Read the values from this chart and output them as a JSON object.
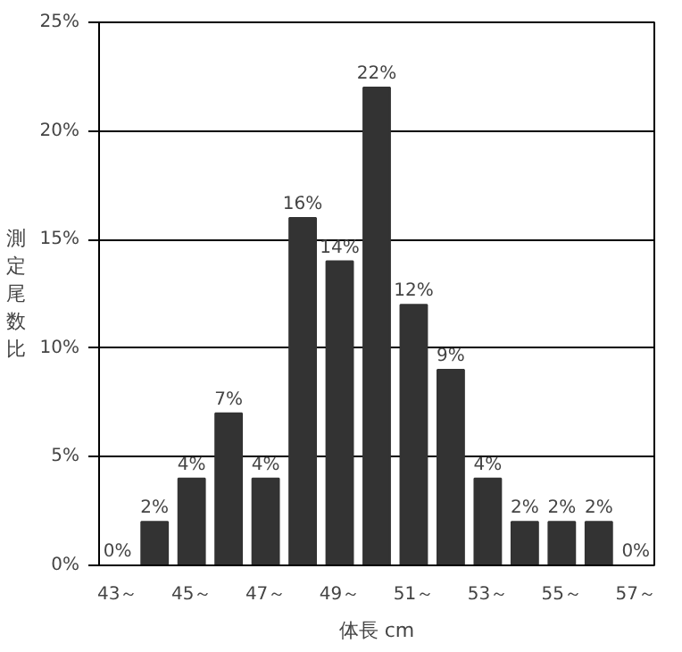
{
  "chart_data": {
    "type": "bar",
    "xlabel": "体長 cm",
    "ylabel": "測定尾数比",
    "categories": [
      "43～",
      null,
      "45～",
      null,
      "47～",
      null,
      "49～",
      null,
      "51～",
      null,
      "53～",
      null,
      "55～",
      null,
      "57～"
    ],
    "values": [
      0,
      2,
      4,
      7,
      4,
      16,
      14,
      22,
      12,
      9,
      4,
      2,
      2,
      2,
      0
    ],
    "value_labels": [
      "0%",
      "2%",
      "4%",
      "7%",
      "4%",
      "16%",
      "14%",
      "22%",
      "12%",
      "9%",
      "4%",
      "2%",
      "2%",
      "2%",
      "0%"
    ],
    "color": "#333333",
    "ylim": [
      0,
      25
    ],
    "yticks": [
      {
        "value": 0,
        "label": "0%"
      },
      {
        "value": 5,
        "label": "5%"
      },
      {
        "value": 10,
        "label": "10%"
      },
      {
        "value": 15,
        "label": "15%"
      },
      {
        "value": 20,
        "label": "20%"
      },
      {
        "value": 25,
        "label": "25%"
      }
    ],
    "grid": "y"
  }
}
